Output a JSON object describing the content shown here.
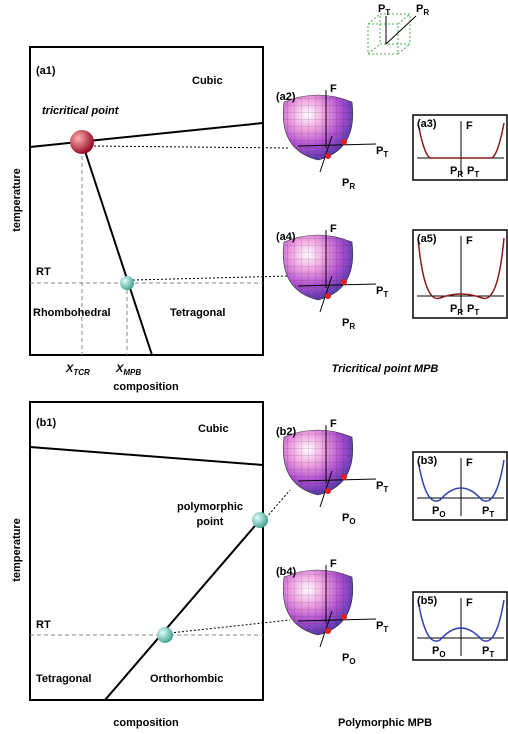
{
  "axes_icon": {
    "labels": [
      {
        "main": "P",
        "sub": "T"
      },
      {
        "main": "P",
        "sub": "R"
      }
    ]
  },
  "panel_a1": {
    "label": "(a1)",
    "cubic": "Cubic",
    "point": "tricritical point",
    "y_axis": "temperature",
    "rt": "RT",
    "left_phase": "Rhombohedral",
    "right_phase": "Tetragonal",
    "x_marks": [
      {
        "main": "X",
        "sub": "TCR"
      },
      {
        "main": "X",
        "sub": "MPB"
      }
    ],
    "x_axis": "composition"
  },
  "surfaces": [
    {
      "label": "(a2)",
      "f": "F",
      "p1": {
        "main": "P",
        "sub": "T"
      },
      "p2": {
        "main": "P",
        "sub": "R"
      }
    },
    {
      "label": "(a4)",
      "f": "F",
      "p1": {
        "main": "P",
        "sub": "T"
      },
      "p2": {
        "main": "P",
        "sub": "R"
      }
    },
    {
      "label": "(b2)",
      "f": "F",
      "p1": {
        "main": "P",
        "sub": "T"
      },
      "p2": {
        "main": "P",
        "sub": "O"
      }
    },
    {
      "label": "(b4)",
      "f": "F",
      "p1": {
        "main": "P",
        "sub": "T"
      },
      "p2": {
        "main": "P",
        "sub": "O"
      }
    }
  ],
  "curves": [
    {
      "label": "(a3)",
      "f": "F",
      "p1": {
        "main": "P",
        "sub": "R"
      },
      "p2": {
        "main": "P",
        "sub": "T"
      }
    },
    {
      "label": "(a5)",
      "f": "F",
      "p1": {
        "main": "P",
        "sub": "R"
      },
      "p2": {
        "main": "P",
        "sub": "T"
      }
    },
    {
      "label": "(b3)",
      "f": "F",
      "p1": {
        "main": "P",
        "sub": "O"
      },
      "p2": {
        "main": "P",
        "sub": "T"
      }
    },
    {
      "label": "(b5)",
      "f": "F",
      "p1": {
        "main": "P",
        "sub": "O"
      },
      "p2": {
        "main": "P",
        "sub": "T"
      }
    }
  ],
  "caption_a": "Tricritical point  MPB",
  "panel_b1": {
    "label": "(b1)",
    "cubic": "Cubic",
    "point": [
      "polymorphic",
      "point"
    ],
    "y_axis": "temperature",
    "rt": "RT",
    "left_phase": "Tetragonal",
    "right_phase": "Orthorhombic",
    "x_axis": "composition"
  },
  "caption_b": "Polymorphic MPB"
}
